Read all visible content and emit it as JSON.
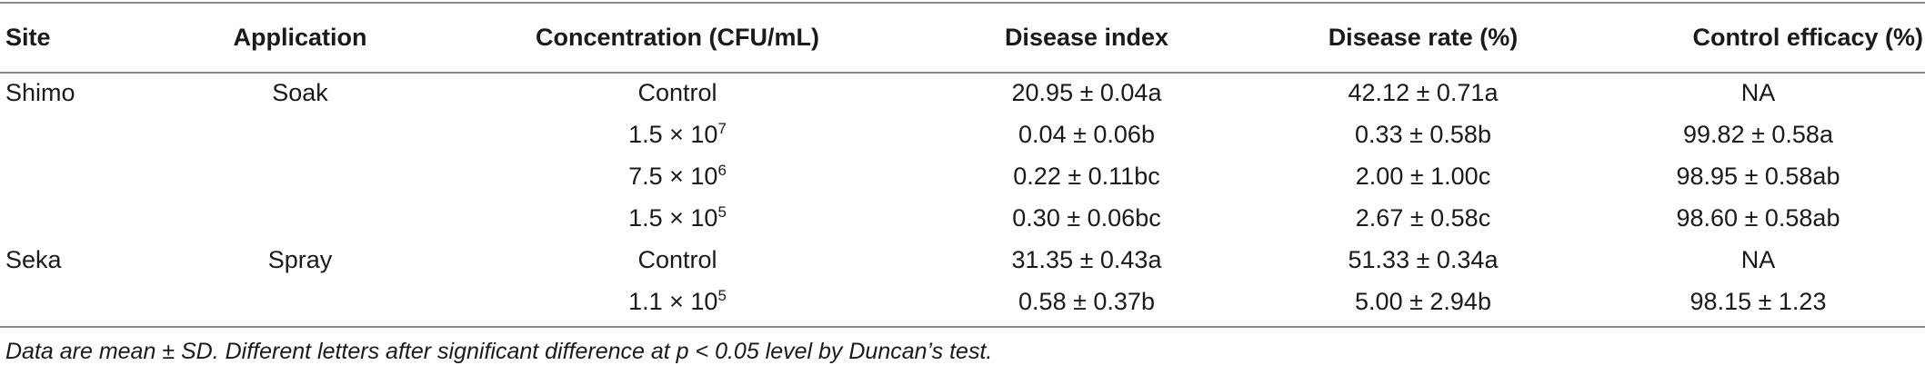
{
  "table": {
    "headers": [
      "Site",
      "Application",
      "Concentration (CFU/mL)",
      "Disease index",
      "Disease rate (%)",
      "Control efficacy (%)"
    ],
    "rows": [
      {
        "site": "Shimo",
        "application": "Soak",
        "conc_base": "Control",
        "conc_exp": "",
        "disease_index": "20.95 ± 0.04a",
        "disease_rate": "42.12 ± 0.71a",
        "control_efficacy": "NA"
      },
      {
        "site": "",
        "application": "",
        "conc_base": "1.5 × 10",
        "conc_exp": "7",
        "disease_index": "0.04 ± 0.06b",
        "disease_rate": "0.33 ± 0.58b",
        "control_efficacy": "99.82 ± 0.58a"
      },
      {
        "site": "",
        "application": "",
        "conc_base": "7.5 × 10",
        "conc_exp": "6",
        "disease_index": "0.22 ± 0.11bc",
        "disease_rate": "2.00 ± 1.00c",
        "control_efficacy": "98.95 ± 0.58ab"
      },
      {
        "site": "",
        "application": "",
        "conc_base": "1.5 × 10",
        "conc_exp": "5",
        "disease_index": "0.30 ± 0.06bc",
        "disease_rate": "2.67 ± 0.58c",
        "control_efficacy": "98.60 ± 0.58ab"
      },
      {
        "site": "Seka",
        "application": "Spray",
        "conc_base": "Control",
        "conc_exp": "",
        "disease_index": "31.35 ± 0.43a",
        "disease_rate": "51.33 ± 0.34a",
        "control_efficacy": "NA"
      },
      {
        "site": "",
        "application": "",
        "conc_base": "1.1 × 10",
        "conc_exp": "5",
        "disease_index": "0.58 ± 0.37b",
        "disease_rate": "5.00 ± 2.94b",
        "control_efficacy": "98.15 ± 1.23"
      }
    ]
  },
  "footnote": "Data are mean ± SD. Different letters after significant difference at p < 0.05 level by Duncan’s test."
}
